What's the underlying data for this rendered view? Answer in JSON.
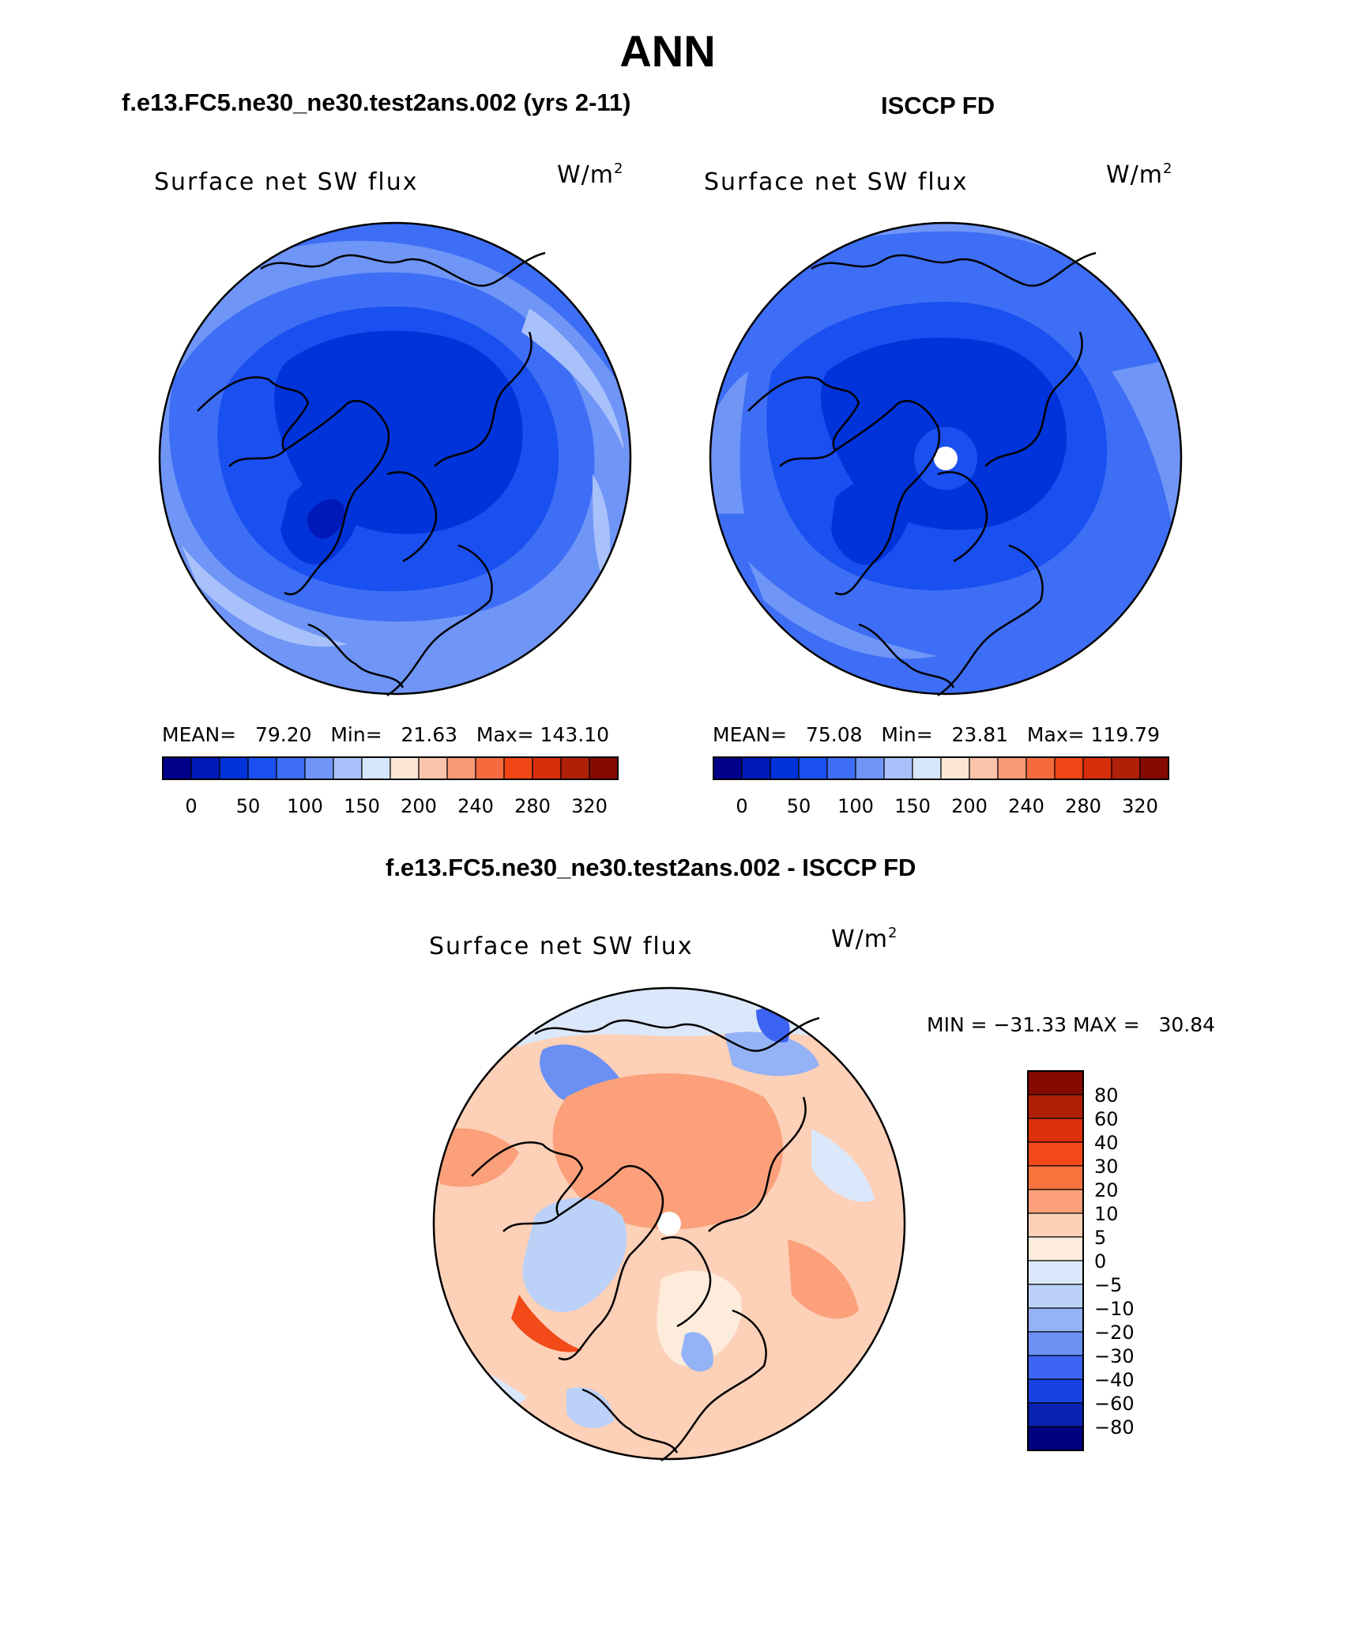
{
  "figure": {
    "title": "ANN",
    "panels": [
      {
        "case_title": "f.e13.FC5.ne30_ne30.test2ans.002 (yrs 2-11)",
        "variable_label": "Surface net SW flux",
        "units": "W/m",
        "units_exponent": "2",
        "stats": "MEAN=   79.20   Min=   21.63   Max= 143.10",
        "has_pole_hole": false
      },
      {
        "case_title": "ISCCP FD",
        "variable_label": "Surface net SW flux",
        "units": "W/m",
        "units_exponent": "2",
        "stats": "MEAN=   75.08   Min=   23.81   Max= 119.79",
        "has_pole_hole": true
      }
    ],
    "difference": {
      "case_title": "f.e13.FC5.ne30_ne30.test2ans.002 - ISCCP FD",
      "variable_label": "Surface net SW flux",
      "units": "W/m",
      "units_exponent": "2",
      "stats": "MIN = −31.33 MAX =   30.84"
    },
    "colorbar": {
      "colors": [
        "#00008b",
        "#0019b8",
        "#0033d9",
        "#1a4ff0",
        "#3d6ef5",
        "#6f95f7",
        "#a9c1fa",
        "#d6e6fb",
        "#fde6d6",
        "#fbc3aa",
        "#f89a78",
        "#f56b3d",
        "#f04514",
        "#d62d0a",
        "#b01f08",
        "#840a02"
      ],
      "labels": [
        "0",
        "50",
        "100",
        "150",
        "200",
        "240",
        "280",
        "320"
      ]
    },
    "diff_colorbar": {
      "colors": [
        "#840a02",
        "#b01f08",
        "#dd300a",
        "#f24a18",
        "#f7743f",
        "#fba07a",
        "#fdd0b8",
        "#fdecdc",
        "#dbe8fb",
        "#bcd1f8",
        "#94b2f6",
        "#6b90f4",
        "#3c64f2",
        "#1942e0",
        "#0a22b0",
        "#000080"
      ],
      "labels": [
        "80",
        "60",
        "40",
        "30",
        "20",
        "10",
        "5",
        "0",
        "−5",
        "−10",
        "−20",
        "−30",
        "−40",
        "−60",
        "−80"
      ]
    }
  }
}
